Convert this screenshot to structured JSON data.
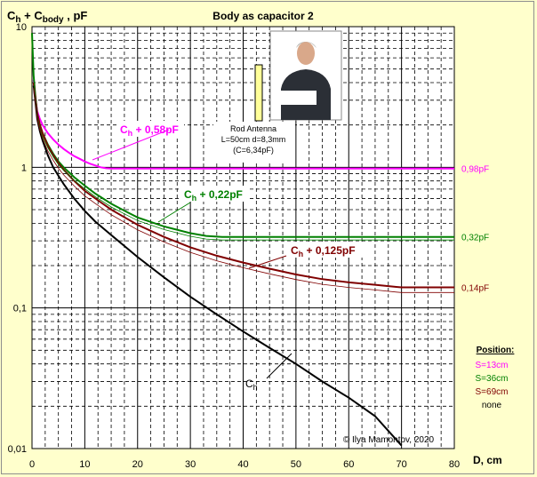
{
  "chart_data": {
    "type": "line",
    "title": "Body as capacitor 2",
    "ylabel_main": "C",
    "ylabel_sub1": "h",
    "ylabel_mid": " + C",
    "ylabel_sub2": "body",
    "ylabel_unit": "  , pF",
    "xlabel": "D, cm",
    "x_ticks": [
      "0",
      "10",
      "20",
      "30",
      "40",
      "50",
      "60",
      "70",
      "80"
    ],
    "y_ticks": [
      "10",
      "1",
      "0,1",
      "0,01"
    ],
    "xlim": [
      0,
      80
    ],
    "ylim": [
      0.01,
      10
    ],
    "y_scale": "log",
    "grid": true,
    "copyright": "© Ilya Mamontov, 2020",
    "antenna_note": [
      "Rod Antenna",
      "L=50cm d=8,3mm",
      "(C=6,34pF)"
    ],
    "legend": {
      "title": "Position:",
      "entries": [
        {
          "text": "S=13cm",
          "color": "#ff00ff"
        },
        {
          "text": "S=36cm",
          "color": "#008000"
        },
        {
          "text": "S=69cm",
          "color": "#800000"
        },
        {
          "text": "none",
          "color": "#000000"
        }
      ]
    },
    "series": [
      {
        "annotation_main": "C",
        "annotation_sub": "h",
        "annotation_rest": " + 0,58pF",
        "color": "#ff00ff",
        "end_label": "0,98pF",
        "x": [
          0.3,
          0.5,
          1,
          1.5,
          2,
          3,
          4,
          5,
          6,
          7,
          8,
          9,
          10,
          11,
          12,
          13,
          14,
          15,
          20,
          30,
          40,
          50,
          60,
          70,
          80
        ],
        "y": [
          4.2,
          3.3,
          2.5,
          2.2,
          2.0,
          1.75,
          1.58,
          1.45,
          1.35,
          1.27,
          1.2,
          1.15,
          1.1,
          1.06,
          1.03,
          1.0,
          0.985,
          0.98,
          0.98,
          0.98,
          0.98,
          0.98,
          0.98,
          0.98,
          0.98
        ]
      },
      {
        "annotation_main": "C",
        "annotation_sub": "h",
        "annotation_rest": " + 0,22pF",
        "color": "#008000",
        "end_label": "0,32pF",
        "x": [
          0,
          0.3,
          0.6,
          1,
          1.5,
          2,
          3,
          4,
          5,
          6,
          8,
          10,
          12,
          15,
          18,
          20,
          25,
          30,
          33,
          36,
          40,
          50,
          60,
          65,
          70,
          80
        ],
        "y": [
          9.0,
          4.5,
          3.3,
          2.4,
          2.0,
          1.75,
          1.45,
          1.25,
          1.1,
          1.0,
          0.85,
          0.74,
          0.65,
          0.55,
          0.48,
          0.44,
          0.38,
          0.34,
          0.325,
          0.32,
          0.32,
          0.32,
          0.32,
          0.32,
          0.32,
          0.32
        ]
      },
      {
        "annotation_main": "C",
        "annotation_sub": "h",
        "annotation_rest": " + 0,125pF",
        "color": "#800000",
        "end_label": "0,14pF",
        "x": [
          0.3,
          0.6,
          1,
          1.5,
          2,
          3,
          4,
          5,
          6,
          8,
          10,
          12,
          15,
          20,
          25,
          30,
          35,
          40,
          45,
          50,
          55,
          60,
          65,
          69,
          70,
          80
        ],
        "y": [
          4.0,
          3.2,
          2.4,
          2.0,
          1.75,
          1.42,
          1.22,
          1.07,
          0.96,
          0.8,
          0.68,
          0.6,
          0.5,
          0.39,
          0.32,
          0.27,
          0.235,
          0.21,
          0.19,
          0.173,
          0.16,
          0.152,
          0.146,
          0.141,
          0.14,
          0.14
        ]
      },
      {
        "annotation_main": "C",
        "annotation_sub": "h",
        "annotation_rest": "",
        "color": "#000000",
        "end_label": "",
        "x": [
          0.3,
          0.6,
          1,
          1.5,
          2,
          3,
          4,
          5,
          6,
          8,
          10,
          12,
          15,
          20,
          25,
          30,
          35,
          40,
          45,
          50,
          55,
          60,
          65,
          70
        ],
        "y": [
          3.8,
          3.0,
          2.2,
          1.8,
          1.55,
          1.22,
          1.0,
          0.87,
          0.76,
          0.6,
          0.49,
          0.41,
          0.33,
          0.23,
          0.165,
          0.12,
          0.09,
          0.068,
          0.052,
          0.04,
          0.03,
          0.023,
          0.017,
          0.0105
        ]
      }
    ]
  }
}
